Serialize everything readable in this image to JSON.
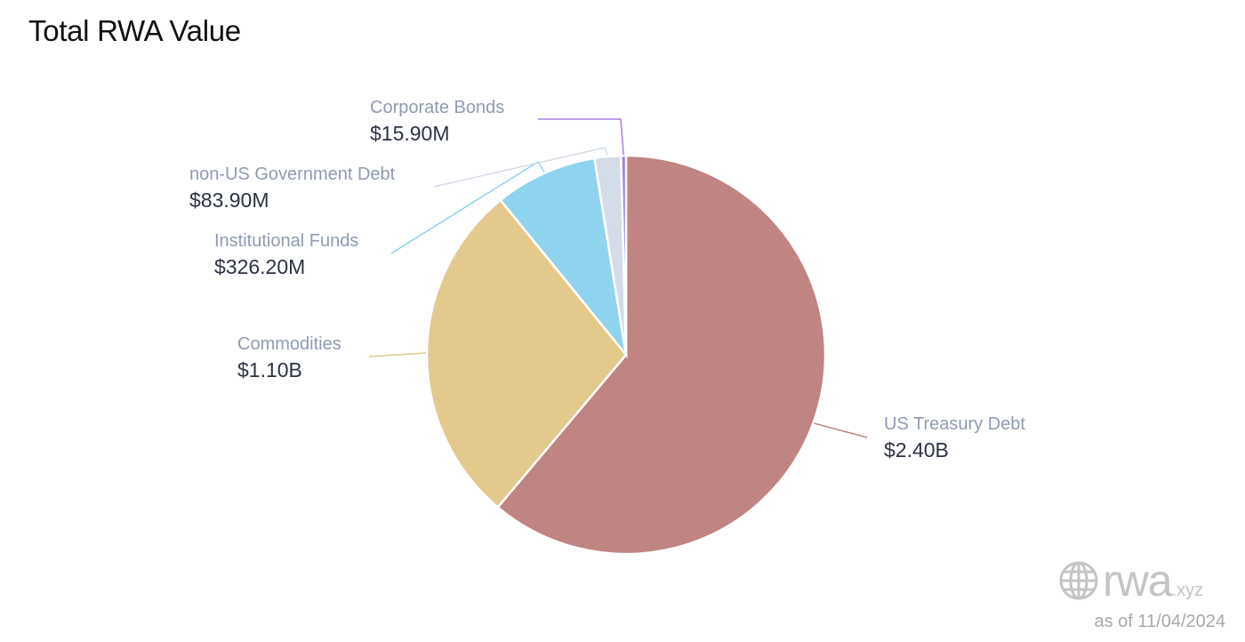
{
  "chart_data": {
    "type": "pie",
    "title": "Total RWA Value",
    "slices": [
      {
        "label": "US Treasury Debt",
        "value_text": "$2.40B",
        "value": 2400,
        "color": "#c08482"
      },
      {
        "label": "Commodities",
        "value_text": "$1.10B",
        "value": 1100,
        "color": "#e3c98c"
      },
      {
        "label": "Institutional Funds",
        "value_text": "$326.20M",
        "value": 326.2,
        "color": "#8fd4ee"
      },
      {
        "label": "non-US Government Debt",
        "value_text": "$83.90M",
        "value": 83.9,
        "color": "#d3dce8"
      },
      {
        "label": "Corporate Bonds",
        "value_text": "$15.90M",
        "value": 15.9,
        "color": "#a77ee6"
      }
    ],
    "unit": "USD millions",
    "legend": "none (direct labels)"
  },
  "branding": {
    "logo_main": "rwa",
    "logo_suffix": ".xyz",
    "as_of": "as of 11/04/2024"
  }
}
